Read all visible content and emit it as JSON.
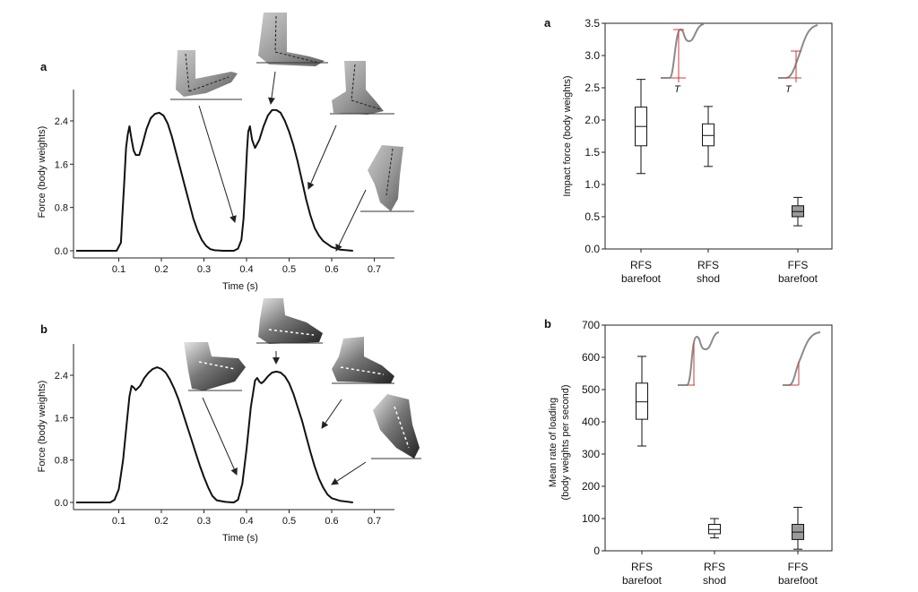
{
  "chart_data": [
    {
      "id": "left-a",
      "panel_label": "a",
      "type": "line",
      "xlabel": "Time (s)",
      "ylabel": "Force (body weights)",
      "xlim": [
        0,
        0.77
      ],
      "ylim": [
        -0.1,
        3.0
      ],
      "xticks": [
        "0.1",
        "0.2",
        "0.3",
        "0.4",
        "0.5",
        "0.6",
        "0.7"
      ],
      "yticks": [
        "0.0",
        "0.8",
        "1.6",
        "2.4"
      ],
      "series": [
        {
          "name": "vertical ground reaction force",
          "x": [
            0.0,
            0.095,
            0.105,
            0.108,
            0.113,
            0.117,
            0.121,
            0.125,
            0.13,
            0.135,
            0.14,
            0.148,
            0.155,
            0.165,
            0.175,
            0.185,
            0.195,
            0.205,
            0.215,
            0.225,
            0.235,
            0.245,
            0.255,
            0.265,
            0.275,
            0.285,
            0.295,
            0.305,
            0.315,
            0.325,
            0.345,
            0.37,
            0.38,
            0.388,
            0.393,
            0.397,
            0.401,
            0.404,
            0.408,
            0.413,
            0.42,
            0.43,
            0.44,
            0.45,
            0.46,
            0.47,
            0.48,
            0.49,
            0.5,
            0.51,
            0.52,
            0.53,
            0.54,
            0.55,
            0.56,
            0.57,
            0.58,
            0.6,
            0.62,
            0.65
          ],
          "y": [
            0.0,
            0.0,
            0.15,
            0.6,
            1.3,
            1.9,
            2.15,
            2.3,
            2.05,
            1.85,
            1.77,
            1.77,
            1.95,
            2.25,
            2.45,
            2.53,
            2.55,
            2.5,
            2.35,
            2.1,
            1.8,
            1.5,
            1.2,
            0.9,
            0.6,
            0.37,
            0.2,
            0.09,
            0.03,
            0.01,
            0.0,
            0.0,
            0.04,
            0.2,
            0.6,
            1.2,
            1.85,
            2.2,
            2.3,
            2.05,
            1.9,
            2.05,
            2.3,
            2.5,
            2.6,
            2.6,
            2.55,
            2.4,
            2.2,
            1.95,
            1.65,
            1.3,
            0.95,
            0.65,
            0.42,
            0.28,
            0.18,
            0.07,
            0.02,
            0.0
          ]
        }
      ]
    },
    {
      "id": "left-b",
      "panel_label": "b",
      "type": "line",
      "xlabel": "Time (s)",
      "ylabel": "Force (body weights)",
      "xlim": [
        0,
        0.77
      ],
      "ylim": [
        -0.1,
        3.0
      ],
      "xticks": [
        "0.1",
        "0.2",
        "0.3",
        "0.4",
        "0.5",
        "0.6",
        "0.7"
      ],
      "yticks": [
        "0.0",
        "0.8",
        "1.6",
        "2.4"
      ],
      "series": [
        {
          "name": "vertical ground reaction force",
          "x": [
            0.0,
            0.08,
            0.09,
            0.1,
            0.11,
            0.12,
            0.125,
            0.13,
            0.135,
            0.14,
            0.15,
            0.16,
            0.17,
            0.18,
            0.19,
            0.2,
            0.21,
            0.22,
            0.23,
            0.24,
            0.25,
            0.26,
            0.27,
            0.28,
            0.29,
            0.3,
            0.31,
            0.32,
            0.33,
            0.35,
            0.37,
            0.38,
            0.39,
            0.4,
            0.41,
            0.42,
            0.425,
            0.43,
            0.435,
            0.44,
            0.45,
            0.46,
            0.47,
            0.48,
            0.49,
            0.5,
            0.51,
            0.52,
            0.53,
            0.54,
            0.55,
            0.56,
            0.57,
            0.58,
            0.59,
            0.6,
            0.62,
            0.65
          ],
          "y": [
            0.0,
            0.0,
            0.05,
            0.25,
            0.8,
            1.6,
            2.0,
            2.2,
            2.17,
            2.12,
            2.2,
            2.35,
            2.45,
            2.52,
            2.55,
            2.52,
            2.45,
            2.32,
            2.15,
            1.95,
            1.7,
            1.45,
            1.2,
            0.95,
            0.7,
            0.48,
            0.28,
            0.12,
            0.04,
            0.01,
            0.0,
            0.05,
            0.35,
            1.0,
            1.8,
            2.3,
            2.35,
            2.28,
            2.25,
            2.28,
            2.38,
            2.45,
            2.47,
            2.45,
            2.38,
            2.25,
            2.05,
            1.8,
            1.55,
            1.25,
            0.95,
            0.68,
            0.45,
            0.28,
            0.15,
            0.08,
            0.03,
            0.0
          ]
        }
      ]
    },
    {
      "id": "right-a",
      "panel_label": "a",
      "type": "box",
      "ylabel": "Impact force (body weights)",
      "ylim": [
        0.0,
        3.5
      ],
      "yticks": [
        "0.0",
        "0.5",
        "1.0",
        "1.5",
        "2.0",
        "2.5",
        "3.0",
        "3.5"
      ],
      "categories": [
        {
          "line1": "RFS",
          "line2": "barefoot",
          "min": 1.17,
          "q1": 1.6,
          "median": 1.9,
          "q3": 2.2,
          "max": 2.63,
          "fill": "#ffffff"
        },
        {
          "line1": "RFS",
          "line2": "shod",
          "min": 1.28,
          "q1": 1.6,
          "median": 1.76,
          "q3": 1.94,
          "max": 2.21,
          "fill": "#ffffff"
        },
        {
          "line1": "FFS",
          "line2": "barefoot",
          "min": 0.36,
          "q1": 0.5,
          "median": 0.58,
          "q3": 0.67,
          "max": 0.8,
          "fill": "#9a9a9a"
        }
      ],
      "inset_label": "T"
    },
    {
      "id": "right-b",
      "panel_label": "b",
      "type": "box",
      "ylabel_line1": "Mean rate of loading",
      "ylabel_line2": "(body weights per second)",
      "ylim": [
        0,
        700
      ],
      "yticks": [
        "0",
        "100",
        "200",
        "300",
        "400",
        "500",
        "600",
        "700"
      ],
      "categories": [
        {
          "line1": "RFS",
          "line2": "barefoot",
          "min": 325,
          "q1": 408,
          "median": 462,
          "q3": 520,
          "max": 603,
          "fill": "#ffffff"
        },
        {
          "line1": "RFS",
          "line2": "shod",
          "min": 40,
          "q1": 53,
          "median": 66,
          "q3": 82,
          "max": 100,
          "fill": "#ffffff"
        },
        {
          "line1": "FFS",
          "line2": "barefoot",
          "min": 5,
          "q1": 35,
          "median": 58,
          "q3": 82,
          "max": 135,
          "fill": "#9a9a9a"
        }
      ]
    }
  ]
}
